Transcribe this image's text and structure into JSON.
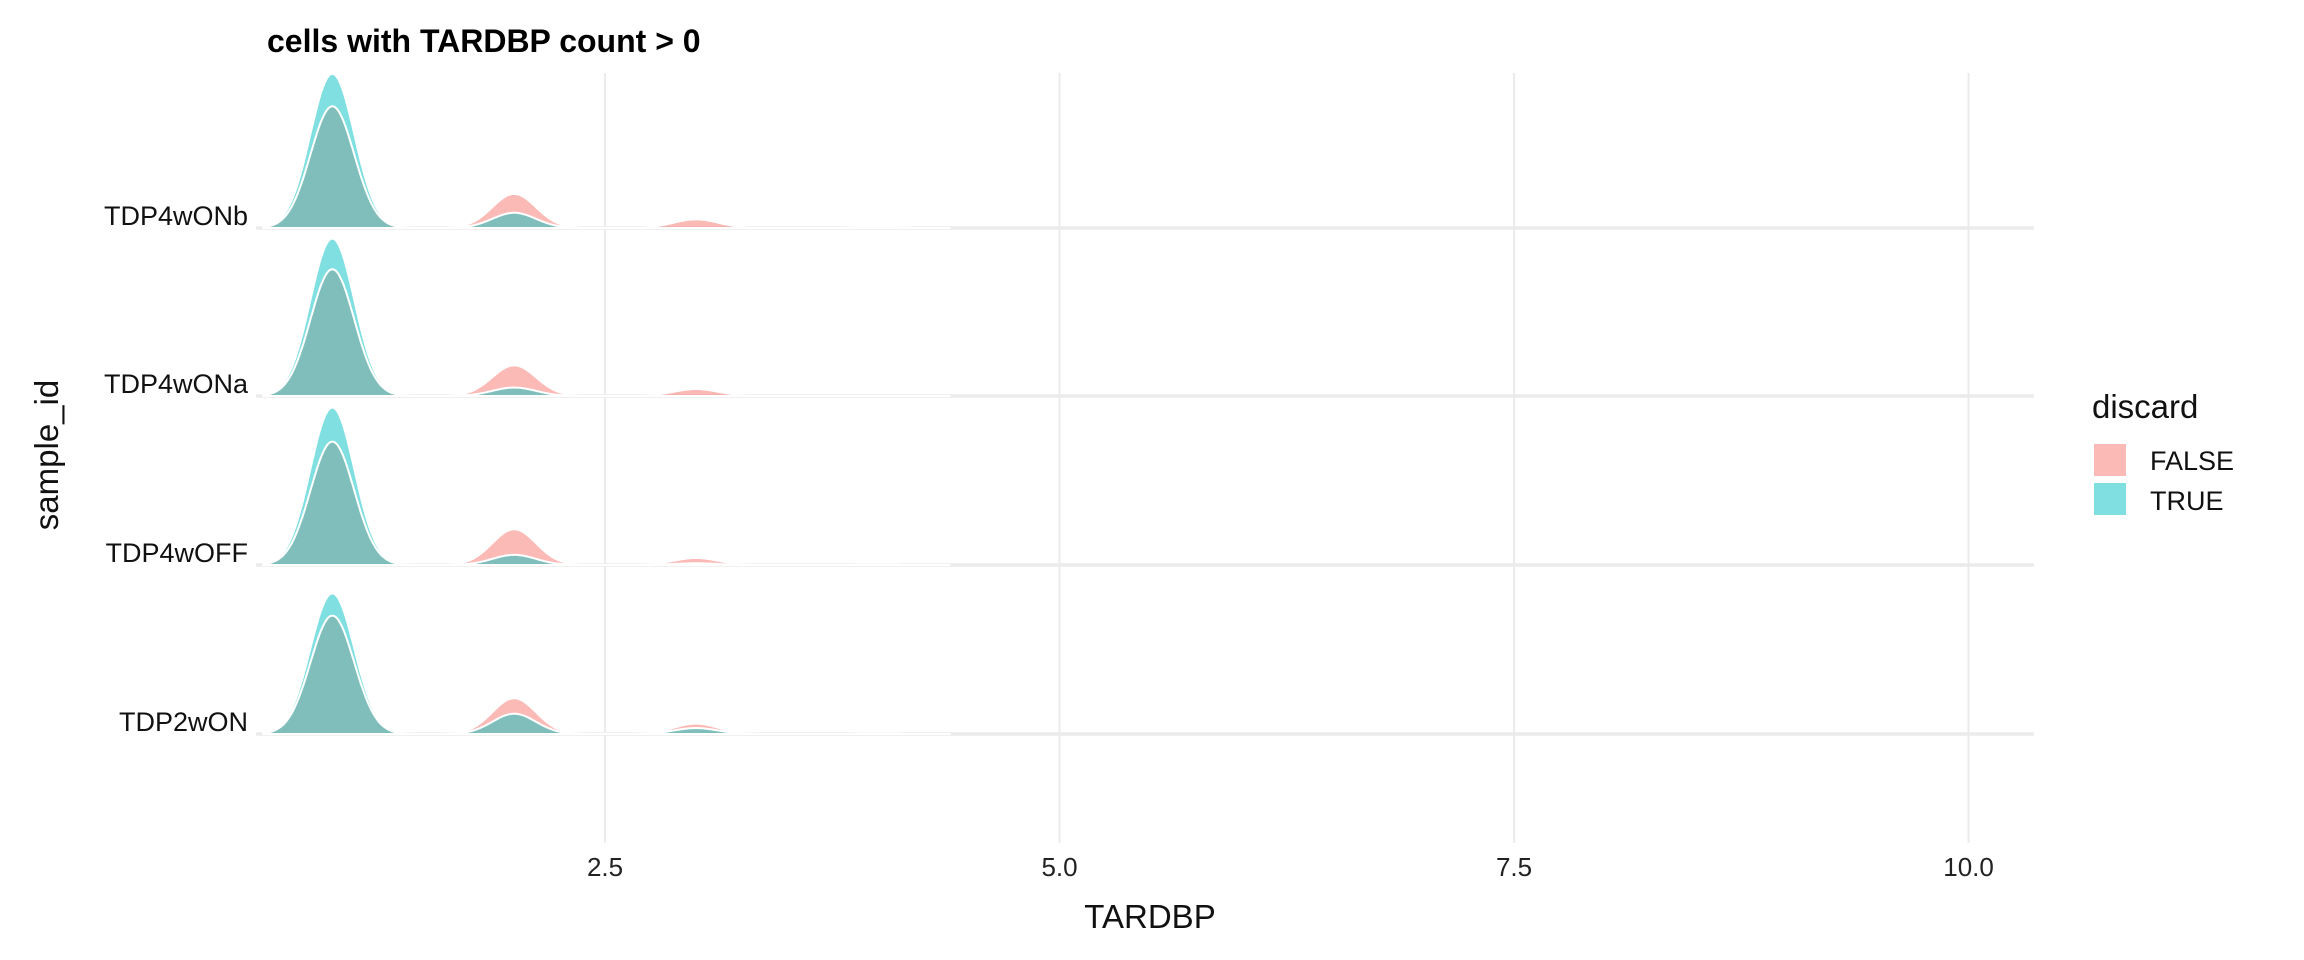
{
  "chart_data": {
    "type": "ridgeline-density",
    "title": "cells with TARDBP count > 0",
    "xlabel": "TARDBP",
    "ylabel": "sample_id",
    "xlim": [
      0.58,
      10.36
    ],
    "xticks": [
      2.5,
      5.0,
      7.5,
      10.0
    ],
    "xtick_labels": [
      "2.5",
      "5.0",
      "7.5",
      "10.0"
    ],
    "grid": true,
    "legend": {
      "title": "discard",
      "position": "right",
      "entries": [
        {
          "label": "FALSE",
          "color": "#F8766D"
        },
        {
          "label": "TRUE",
          "color": "#00BFC4"
        }
      ]
    },
    "peak_x": [
      1,
      2,
      3,
      4
    ],
    "categories": [
      "TDP2wON",
      "TDP4wOFF",
      "TDP4wONa",
      "TDP4wONb"
    ],
    "series": [
      {
        "sample": "TDP2wON",
        "FALSE": [
          0.7,
          0.21,
          0.06,
          0.005
        ],
        "TRUE": [
          0.83,
          0.12,
          0.035,
          0
        ]
      },
      {
        "sample": "TDP4wOFF",
        "FALSE": [
          0.73,
          0.21,
          0.04,
          0.005
        ],
        "TRUE": [
          0.93,
          0.06,
          0.01,
          0
        ]
      },
      {
        "sample": "TDP4wONa",
        "FALSE": [
          0.75,
          0.18,
          0.04,
          0
        ],
        "TRUE": [
          0.93,
          0.05,
          0,
          0
        ]
      },
      {
        "sample": "TDP4wONb",
        "FALSE": [
          0.72,
          0.2,
          0.05,
          0.01
        ],
        "TRUE": [
          0.91,
          0.09,
          0,
          0
        ]
      }
    ],
    "colors": {
      "FALSE": "#F8766D",
      "TRUE": "#00BFC4",
      "overlap": "#80BEBC",
      "grid": "#EBEBEB"
    }
  }
}
